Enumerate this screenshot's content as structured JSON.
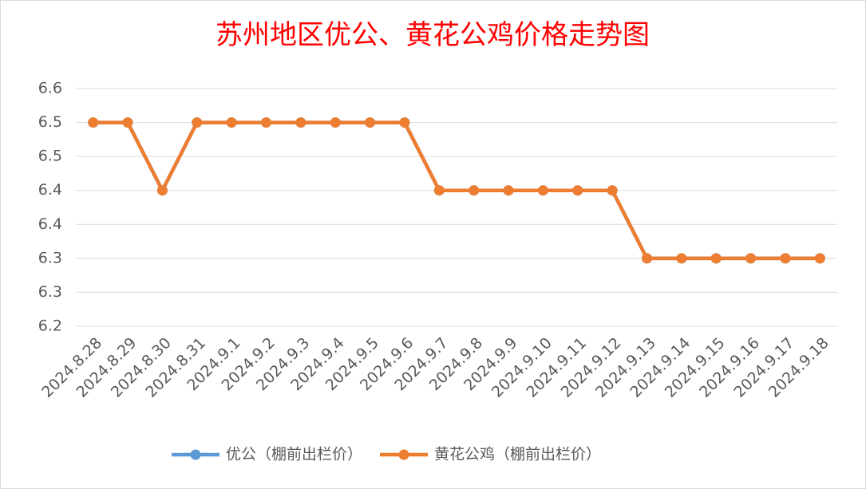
{
  "chart_data": {
    "type": "line",
    "title": "苏州地区优公、黄花公鸡价格走势图",
    "categories": [
      "2024.8.28",
      "2024.8.29",
      "2024.8.30",
      "2024.8.31",
      "2024.9.1",
      "2024.9.2",
      "2024.9.3",
      "2024.9.4",
      "2024.9.5",
      "2024.9.6",
      "2024.9.7",
      "2024.9.8",
      "2024.9.9",
      "2024.9.10",
      "2024.9.11",
      "2024.9.12",
      "2024.9.13",
      "2024.9.14",
      "2024.9.15",
      "2024.9.16",
      "2024.9.17",
      "2024.9.18"
    ],
    "series": [
      {
        "name": "优公（棚前出栏价）",
        "color": "#5b9bd5",
        "values": [
          6.5,
          6.5,
          6.4,
          6.5,
          6.5,
          6.5,
          6.5,
          6.5,
          6.5,
          6.5,
          6.4,
          6.4,
          6.4,
          6.4,
          6.4,
          6.4,
          6.3,
          6.3,
          6.3,
          6.3,
          6.3,
          6.3
        ]
      },
      {
        "name": "黄花公鸡（棚前出栏价）",
        "color": "#ed7d31",
        "values": [
          6.5,
          6.5,
          6.4,
          6.5,
          6.5,
          6.5,
          6.5,
          6.5,
          6.5,
          6.5,
          6.4,
          6.4,
          6.4,
          6.4,
          6.4,
          6.4,
          6.3,
          6.3,
          6.3,
          6.3,
          6.3,
          6.3
        ]
      }
    ],
    "ylim": [
      6.2,
      6.55
    ],
    "yticks": [
      6.2,
      {
        "value": 6.25,
        "label": "6.3"
      },
      6.3,
      {
        "value": 6.35,
        "label": "6.4"
      },
      6.4,
      {
        "value": 6.45,
        "label": "6.5"
      },
      6.5,
      {
        "value": 6.55,
        "label": "6.6"
      }
    ],
    "grid": true,
    "legend": "bottom"
  }
}
